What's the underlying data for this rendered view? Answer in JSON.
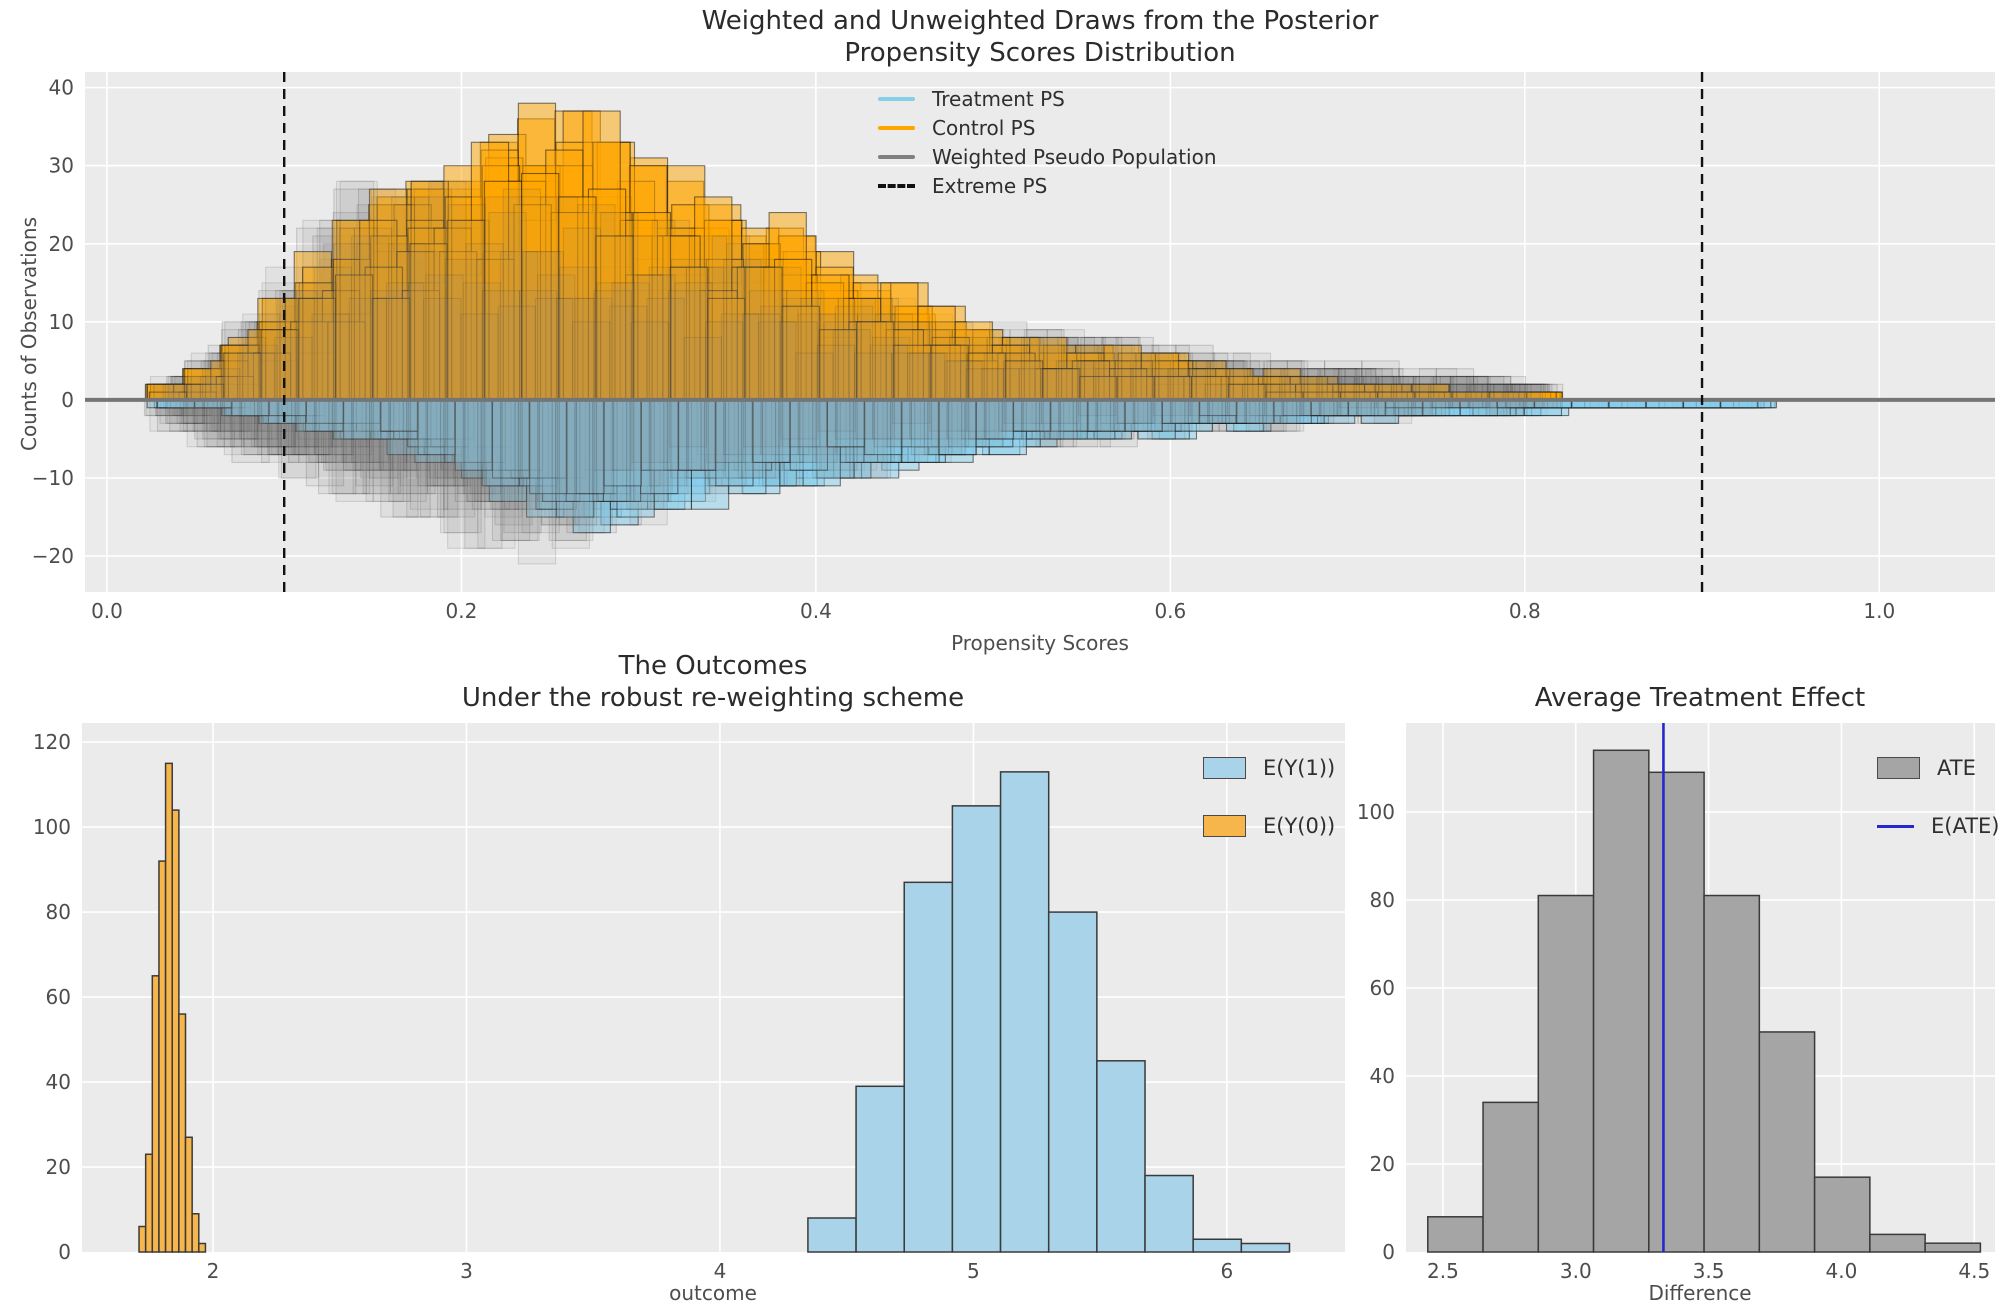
{
  "figure": {
    "background": "#ffffff",
    "panel_bg": "#ebebeb",
    "grid_color": "#ffffff",
    "tick_color": "#4d4d4d",
    "title_color": "#2b2b2b"
  },
  "chart_data": [
    {
      "type": "histogram-overlay-mirrored",
      "title_line1": "Weighted and Unweighted Draws from the Posterior",
      "title_line2": "Propensity Scores Distribution",
      "xlabel": "Propensity Scores",
      "ylabel": "Counts of Observations",
      "xlim": [
        -0.0124,
        1.0653
      ],
      "ylim": [
        -24.6,
        42
      ],
      "x_tick_values": [
        0.0,
        0.2,
        0.4,
        0.6,
        0.8,
        1.0
      ],
      "x_tick_labels": [
        "0.0",
        "0.2",
        "0.4",
        "0.6",
        "0.8",
        "1.0"
      ],
      "y_tick_values": [
        40,
        30,
        20,
        10,
        0,
        -10,
        -20
      ],
      "y_tick_labels": [
        "40",
        "30",
        "20",
        "10",
        "0",
        "−10",
        "−20"
      ],
      "extreme_ps": [
        0.1,
        0.9
      ],
      "extreme_color": "#111111",
      "zero_line_color": "#757575",
      "seed": 11,
      "legend": [
        {
          "label": "Treatment PS",
          "color": "#87CEEB",
          "style": "line"
        },
        {
          "label": "Control PS",
          "color": "#FFA500",
          "style": "line"
        },
        {
          "label": "Weighted Pseudo Population",
          "color": "#808080",
          "style": "line"
        },
        {
          "label": "Extreme PS",
          "color": "#111111",
          "style": "dashed-line"
        }
      ],
      "series": {
        "bin_width": 0.021,
        "env_x0": 0.033,
        "env_dx": 0.03,
        "control": {
          "name": "Control PS",
          "color": "#FFA500",
          "alpha": 0.5,
          "draws": 16,
          "envelope": [
            1,
            4,
            10,
            17,
            24,
            29,
            33,
            38,
            37,
            31,
            28,
            26,
            22,
            17,
            13,
            10,
            8,
            7,
            6,
            5,
            4,
            3,
            2.5,
            2,
            1.5,
            1.2,
            1
          ]
        },
        "treatment": {
          "name": "Treatment PS",
          "color": "#87CEEB",
          "alpha": 0.5,
          "draws": 16,
          "envelope": [
            0.5,
            1.5,
            2.5,
            4,
            5.5,
            7,
            10,
            14,
            17,
            15,
            14,
            13,
            11,
            10,
            9,
            8,
            7,
            6,
            5,
            4.5,
            4,
            3.5,
            3,
            2.5,
            2.2,
            2,
            1.8,
            1.5,
            1.2,
            1,
            1
          ]
        },
        "weighted_above": {
          "name": "Weighted Pseudo Population",
          "color": "#808080",
          "alpha": 0.11,
          "draws": 18,
          "envelope": [
            2,
            6,
            13,
            21,
            29,
            28,
            27,
            26,
            25,
            23,
            21,
            20,
            17,
            14,
            12,
            10,
            9,
            8.5,
            8,
            7,
            6,
            5,
            4.5,
            4,
            3.5,
            3,
            2
          ]
        },
        "weighted_below": {
          "name": "Weighted Pseudo Population",
          "color": "#808080",
          "alpha": 0.11,
          "draws": 18,
          "envelope": [
            2.5,
            6,
            9,
            11,
            13,
            16,
            19,
            21,
            18,
            15,
            13,
            11,
            10,
            9,
            8,
            7,
            6,
            5.5,
            5,
            4.5,
            4,
            3.5,
            3,
            2.5,
            2,
            1.8,
            1.5
          ]
        }
      }
    },
    {
      "type": "histogram",
      "title_line1": "The Outcomes",
      "title_line2": "Under the robust re-weighting scheme",
      "xlabel": "outcome",
      "xlim": [
        1.483,
        6.466
      ],
      "ylim": [
        0,
        124.5
      ],
      "x_tick_values": [
        2,
        3,
        4,
        5,
        6
      ],
      "x_tick_labels": [
        "2",
        "3",
        "4",
        "5",
        "6"
      ],
      "y_tick_values": [
        0,
        20,
        40,
        60,
        80,
        100,
        120
      ],
      "y_tick_labels": [
        "0",
        "20",
        "40",
        "60",
        "80",
        "100",
        "120"
      ],
      "series": [
        {
          "name": "E(Y(1))",
          "color": "#A9D3E8",
          "edge": "#3a3a3a",
          "start": 4.347,
          "bin_width": 0.19,
          "counts": [
            8,
            39,
            87,
            105,
            113,
            80,
            45,
            18,
            3,
            2
          ]
        },
        {
          "name": "E(Y(0))",
          "color": "#F7B64C",
          "edge": "#3a3a3a",
          "start": 1.708,
          "bin_width": 0.0262,
          "counts": [
            6,
            23,
            65,
            92,
            115,
            104,
            56,
            27,
            9,
            2
          ]
        }
      ],
      "legend": [
        {
          "label": "E(Y(1))",
          "color": "#A9D3E8",
          "style": "patch"
        },
        {
          "label": "E(Y(0))",
          "color": "#F7B64C",
          "style": "patch"
        }
      ]
    },
    {
      "type": "histogram",
      "title_line1": "Average Treatment Effect",
      "xlabel": "Difference",
      "xlim": [
        2.361,
        4.578
      ],
      "ylim": [
        0,
        120.2
      ],
      "x_tick_values": [
        2.5,
        3.0,
        3.5,
        4.0,
        4.5
      ],
      "x_tick_labels": [
        "2.5",
        "3.0",
        "3.5",
        "4.0",
        "4.5"
      ],
      "y_tick_values": [
        0,
        20,
        40,
        60,
        80,
        100
      ],
      "y_tick_labels": [
        "0",
        "20",
        "40",
        "60",
        "80",
        "100"
      ],
      "series": [
        {
          "name": "ATE",
          "color": "#A5A5A5",
          "edge": "#3a3a3a",
          "start": 2.443,
          "bin_width": 0.208,
          "counts": [
            8,
            34,
            81,
            114,
            109,
            81,
            50,
            17,
            4,
            2
          ]
        }
      ],
      "e_ate": {
        "value": 3.33,
        "color": "#2727CF",
        "label": "E(ATE)"
      },
      "legend": [
        {
          "label": "ATE",
          "color": "#A5A5A5",
          "style": "patch"
        },
        {
          "label": "E(ATE)",
          "color": "#2727CF",
          "style": "line"
        }
      ]
    }
  ]
}
